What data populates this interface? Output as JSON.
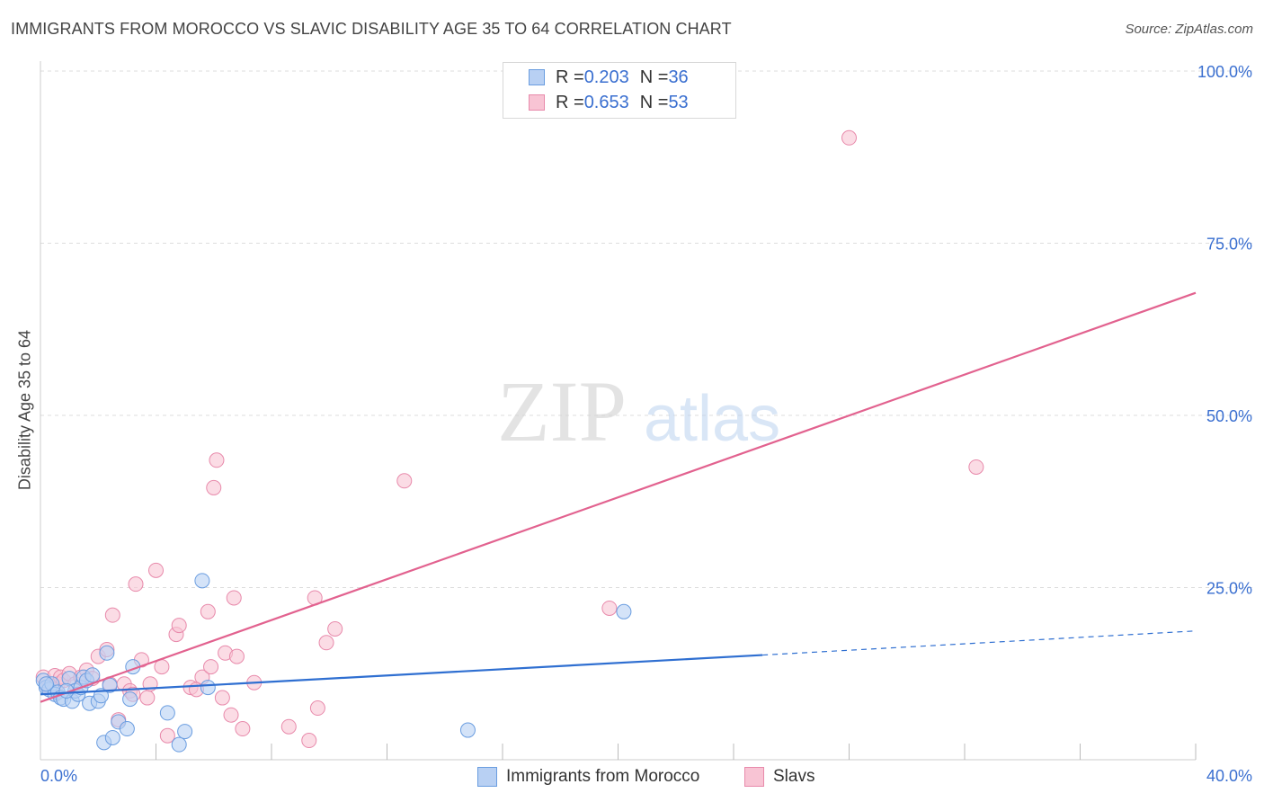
{
  "header": {
    "title": "IMMIGRANTS FROM MOROCCO VS SLAVIC DISABILITY AGE 35 TO 64 CORRELATION CHART",
    "source": "Source: ZipAtlas.com"
  },
  "watermark": {
    "zip": "ZIP",
    "atlas": "atlas"
  },
  "legend": {
    "rows": [
      {
        "r_label": "R = ",
        "r_value": "0.203",
        "n_label": "N = ",
        "n_value": "36"
      },
      {
        "r_label": "R = ",
        "r_value": "0.653",
        "n_label": "N = ",
        "n_value": "53"
      }
    ]
  },
  "bottom_legend": {
    "items": [
      {
        "label": "Immigrants from Morocco"
      },
      {
        "label": "Slavs"
      }
    ]
  },
  "colors": {
    "blue_fill": "#b8d0f3",
    "blue_stroke": "#6a9de0",
    "blue_line": "#2f6fd1",
    "pink_fill": "#f8c4d4",
    "pink_stroke": "#e88aab",
    "pink_line": "#e2628f",
    "tick_label": "#3a6fd0",
    "grid": "#dddddd"
  },
  "chart_data": {
    "type": "scatter",
    "title": "IMMIGRANTS FROM MOROCCO VS SLAVIC DISABILITY AGE 35 TO 64 CORRELATION CHART",
    "xlabel": "",
    "ylabel": "Disability Age 35 to 64",
    "xlim": [
      0,
      40
    ],
    "ylim": [
      0,
      100
    ],
    "x_tick_labels": [
      {
        "value": 0,
        "label": "0.0%"
      },
      {
        "value": 40,
        "label": "40.0%"
      }
    ],
    "y_tick_labels": [
      {
        "value": 100,
        "label": "100.0%"
      },
      {
        "value": 75,
        "label": "75.0%"
      },
      {
        "value": 50,
        "label": "50.0%"
      },
      {
        "value": 25,
        "label": "25.0%"
      }
    ],
    "series": [
      {
        "name": "Immigrants from Morocco",
        "r": 0.203,
        "n": 36,
        "points": [
          [
            0.1,
            11.5
          ],
          [
            0.2,
            10.5
          ],
          [
            0.3,
            10.2
          ],
          [
            0.4,
            11.0
          ],
          [
            0.5,
            9.5
          ],
          [
            0.6,
            9.8
          ],
          [
            0.7,
            9.0
          ],
          [
            0.8,
            8.8
          ],
          [
            1.0,
            11.8
          ],
          [
            1.1,
            8.5
          ],
          [
            1.2,
            10.0
          ],
          [
            1.3,
            9.5
          ],
          [
            1.4,
            10.5
          ],
          [
            1.5,
            12.0
          ],
          [
            1.6,
            11.5
          ],
          [
            1.7,
            8.2
          ],
          [
            2.0,
            8.5
          ],
          [
            2.1,
            9.3
          ],
          [
            2.2,
            2.5
          ],
          [
            2.3,
            15.5
          ],
          [
            2.4,
            10.8
          ],
          [
            2.5,
            3.2
          ],
          [
            2.7,
            5.5
          ],
          [
            3.0,
            4.5
          ],
          [
            3.1,
            8.8
          ],
          [
            3.2,
            13.5
          ],
          [
            4.4,
            6.8
          ],
          [
            4.8,
            2.2
          ],
          [
            5.0,
            4.1
          ],
          [
            5.6,
            26.0
          ],
          [
            5.8,
            10.5
          ],
          [
            14.8,
            4.3
          ],
          [
            20.2,
            21.5
          ],
          [
            0.2,
            11.0
          ],
          [
            0.9,
            10.0
          ],
          [
            1.8,
            12.3
          ]
        ]
      },
      {
        "name": "Slavs",
        "r": 0.653,
        "n": 53,
        "points": [
          [
            0.1,
            12.0
          ],
          [
            0.2,
            11.0
          ],
          [
            0.3,
            10.5
          ],
          [
            0.5,
            12.2
          ],
          [
            0.6,
            11.0
          ],
          [
            0.7,
            12.0
          ],
          [
            0.8,
            11.5
          ],
          [
            1.0,
            12.5
          ],
          [
            1.2,
            11.0
          ],
          [
            1.4,
            12.0
          ],
          [
            1.6,
            13.0
          ],
          [
            1.8,
            11.8
          ],
          [
            2.0,
            15.0
          ],
          [
            2.3,
            16.0
          ],
          [
            2.4,
            11.0
          ],
          [
            2.5,
            21.0
          ],
          [
            2.7,
            5.8
          ],
          [
            2.9,
            11.0
          ],
          [
            3.1,
            10.0
          ],
          [
            3.2,
            9.5
          ],
          [
            3.3,
            25.5
          ],
          [
            3.5,
            14.5
          ],
          [
            3.7,
            9.0
          ],
          [
            3.8,
            11.0
          ],
          [
            4.0,
            27.5
          ],
          [
            4.2,
            13.5
          ],
          [
            4.4,
            3.5
          ],
          [
            4.7,
            18.2
          ],
          [
            4.8,
            19.5
          ],
          [
            5.2,
            10.5
          ],
          [
            5.4,
            10.2
          ],
          [
            5.6,
            12.0
          ],
          [
            5.8,
            21.5
          ],
          [
            5.9,
            13.5
          ],
          [
            6.0,
            39.5
          ],
          [
            6.1,
            43.5
          ],
          [
            6.3,
            9.0
          ],
          [
            6.4,
            15.5
          ],
          [
            6.6,
            6.5
          ],
          [
            6.7,
            23.5
          ],
          [
            6.8,
            15.0
          ],
          [
            7.0,
            4.5
          ],
          [
            7.4,
            11.2
          ],
          [
            8.6,
            4.8
          ],
          [
            9.3,
            2.8
          ],
          [
            9.5,
            23.5
          ],
          [
            9.6,
            7.5
          ],
          [
            9.9,
            17.0
          ],
          [
            10.2,
            19.0
          ],
          [
            12.6,
            40.5
          ],
          [
            19.7,
            22.0
          ],
          [
            28.0,
            90.3
          ],
          [
            32.4,
            42.5
          ]
        ]
      }
    ],
    "trendlines": [
      {
        "series": "Immigrants from Morocco",
        "solid": [
          [
            0,
            9.5
          ],
          [
            25,
            15.2
          ]
        ],
        "dashed": [
          [
            25,
            15.2
          ],
          [
            40,
            18.7
          ]
        ]
      },
      {
        "series": "Slavs",
        "solid": [
          [
            0,
            8.4
          ],
          [
            40,
            67.8
          ]
        ]
      }
    ]
  }
}
